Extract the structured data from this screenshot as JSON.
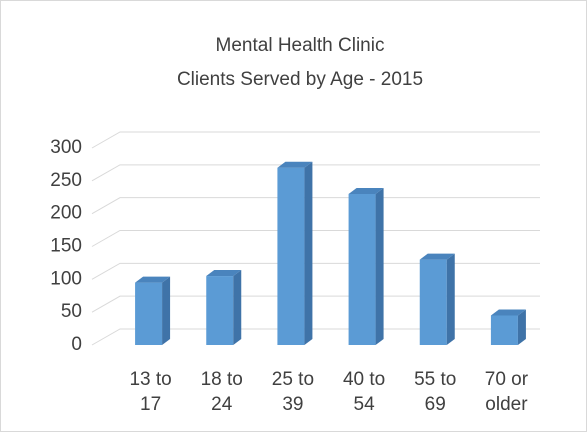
{
  "chart_data": {
    "type": "bar3d",
    "title": [
      "Mental Health Clinic",
      "Clients Served by Age - 2015"
    ],
    "categories": [
      "13 to 17",
      "18 to 24",
      "25 to 39",
      "40 to 54",
      "55 to 69",
      "70 or older"
    ],
    "values": [
      95,
      105,
      270,
      230,
      130,
      45
    ],
    "color": "#5b9bd5",
    "ylim": [
      0,
      300
    ],
    "yticks": [
      0,
      50,
      100,
      150,
      200,
      250,
      300
    ],
    "grid": true
  }
}
